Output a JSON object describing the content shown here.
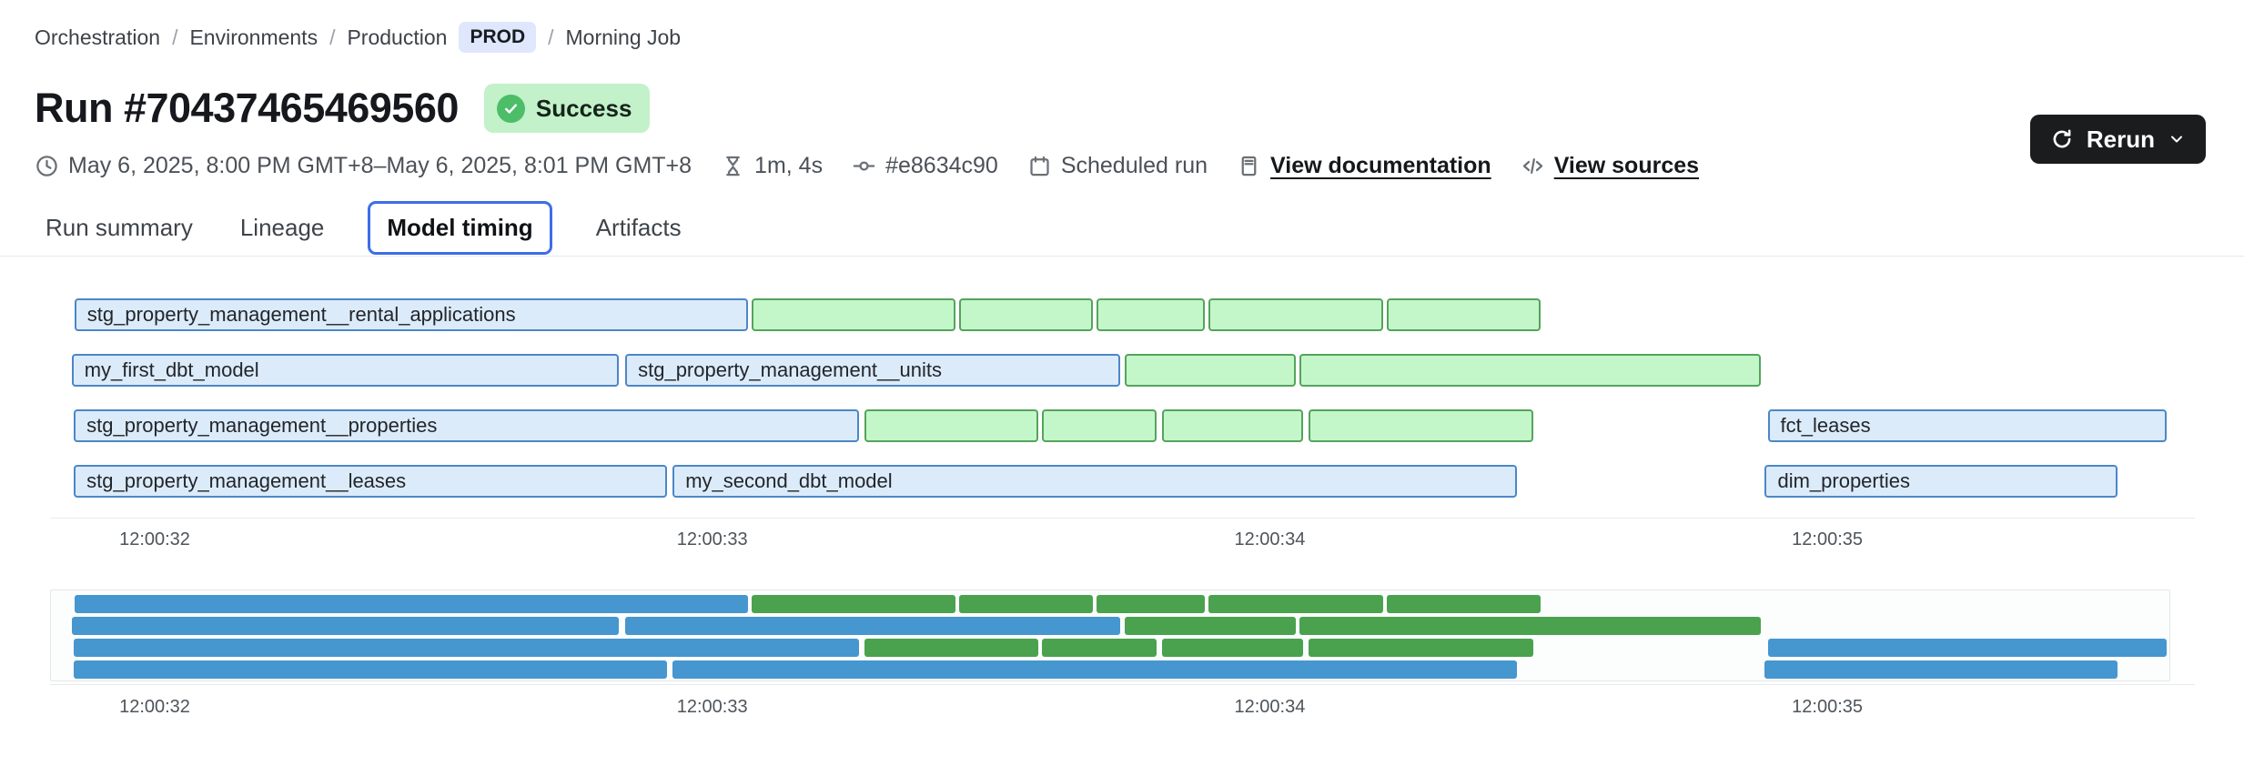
{
  "breadcrumb": {
    "items": [
      "Orchestration",
      "Environments",
      "Production"
    ],
    "env_badge": "PROD",
    "current": "Morning Job",
    "separator": "/"
  },
  "header": {
    "title": "Run #70437465469560",
    "status": "Success"
  },
  "meta": {
    "time_range": "May 6, 2025, 8:00 PM GMT+8–May 6, 2025, 8:01 PM GMT+8",
    "duration": "1m, 4s",
    "commit": "#e8634c90",
    "trigger": "Scheduled run",
    "doc_link": "View documentation",
    "sources_link": "View sources"
  },
  "actions": {
    "rerun_label": "Rerun"
  },
  "tabs": [
    {
      "label": "Run summary",
      "selected": false
    },
    {
      "label": "Lineage",
      "selected": false
    },
    {
      "label": "Model timing",
      "selected": true
    },
    {
      "label": "Artifacts",
      "selected": false
    }
  ],
  "colors": {
    "main_blue_fill": "#dcebfa",
    "main_blue_border": "#4c87c6",
    "main_green_fill": "#c3f7c9",
    "main_green_border": "#55a35d",
    "mini_blue": "#4697cf",
    "mini_green": "#4aa24f",
    "tab_accent": "#3e6de8",
    "status_badge_bg": "#c3f1ca",
    "status_icon_green": "#4cbe68",
    "prod_badge_bg": "#dee7fc",
    "button_dark": "#1a1c1e"
  },
  "chart_data": {
    "type": "gantt",
    "title": "Model timing",
    "time_unit": "seconds after 12:00:00",
    "axis": {
      "ticks": [
        32,
        33,
        34,
        35
      ],
      "tick_labels": [
        "12:00:32",
        "12:00:33",
        "12:00:34",
        "12:00:35"
      ]
    },
    "minimap_shown": true,
    "rows": [
      [
        {
          "label": "stg_property_management__rental_applications",
          "start": 31.856,
          "end": 33.064,
          "color": "blue"
        },
        {
          "label": "",
          "start": 33.071,
          "end": 33.437,
          "color": "green"
        },
        {
          "label": "",
          "start": 33.443,
          "end": 33.683,
          "color": "green"
        },
        {
          "label": "",
          "start": 33.69,
          "end": 33.884,
          "color": "green"
        },
        {
          "label": "",
          "start": 33.89,
          "end": 34.204,
          "color": "green"
        },
        {
          "label": "",
          "start": 34.21,
          "end": 34.485,
          "color": "green"
        }
      ],
      [
        {
          "label": "my_first_dbt_model",
          "start": 31.851,
          "end": 32.833,
          "color": "blue"
        },
        {
          "label": "stg_property_management__units",
          "start": 32.844,
          "end": 33.731,
          "color": "blue"
        },
        {
          "label": "",
          "start": 33.74,
          "end": 34.047,
          "color": "green"
        },
        {
          "label": "",
          "start": 34.054,
          "end": 34.88,
          "color": "green"
        }
      ],
      [
        {
          "label": "stg_property_management__properties",
          "start": 31.855,
          "end": 33.264,
          "color": "blue"
        },
        {
          "label": "",
          "start": 33.273,
          "end": 33.585,
          "color": "green"
        },
        {
          "label": "",
          "start": 33.592,
          "end": 33.797,
          "color": "green"
        },
        {
          "label": "",
          "start": 33.807,
          "end": 34.059,
          "color": "green"
        },
        {
          "label": "",
          "start": 34.07,
          "end": 34.472,
          "color": "green"
        },
        {
          "label": "fct_leases",
          "start": 34.893,
          "end": 35.608,
          "color": "blue"
        }
      ],
      [
        {
          "label": "stg_property_management__leases",
          "start": 31.855,
          "end": 32.919,
          "color": "blue"
        },
        {
          "label": "my_second_dbt_model",
          "start": 32.929,
          "end": 34.444,
          "color": "blue"
        },
        {
          "label": "dim_properties",
          "start": 34.888,
          "end": 35.52,
          "color": "blue"
        }
      ]
    ]
  }
}
